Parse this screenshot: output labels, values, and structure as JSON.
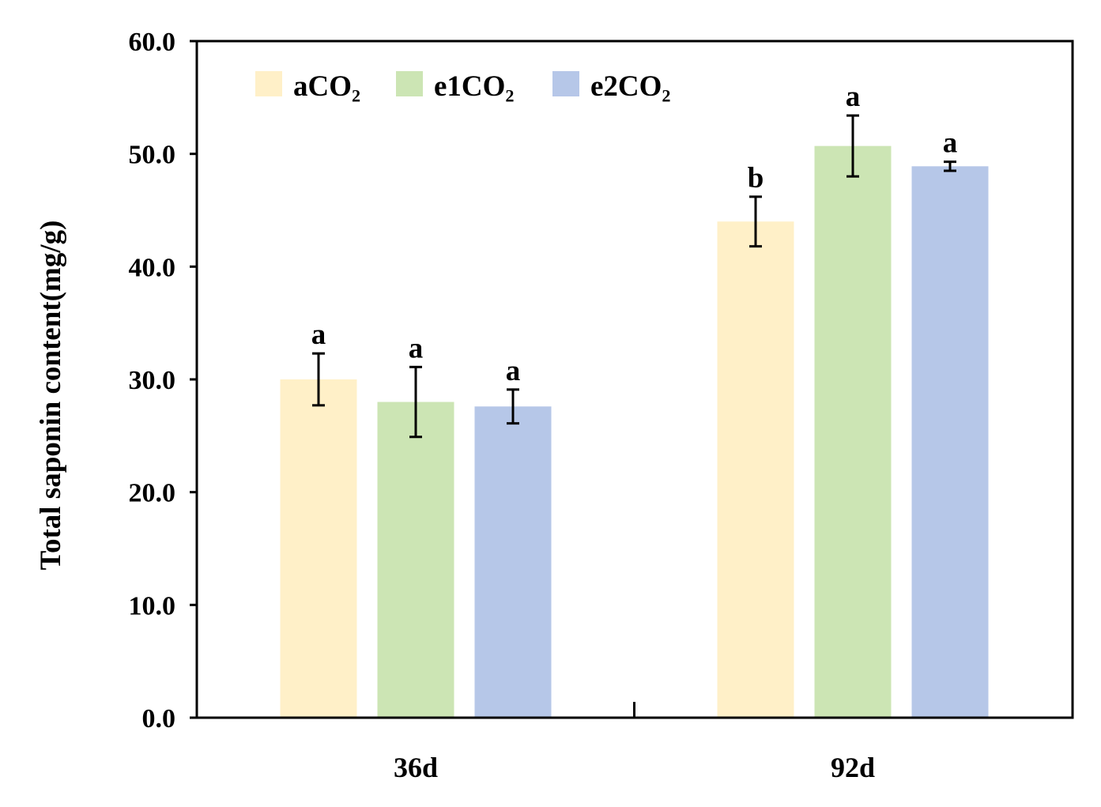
{
  "chart_data": {
    "type": "bar",
    "title": "",
    "xlabel": "",
    "ylabel": "Total saponin content(mg/g)",
    "ylim": [
      0,
      60
    ],
    "yticks": [
      0,
      10,
      20,
      30,
      40,
      50,
      60
    ],
    "ytick_labels": [
      "0.0",
      "10.0",
      "20.0",
      "30.0",
      "40.0",
      "50.0",
      "60.0"
    ],
    "categories": [
      "36d",
      "92d"
    ],
    "legend_position": "top-left",
    "series": [
      {
        "name": "aCO₂",
        "color": "#fff0c8",
        "values": [
          30.0,
          44.0
        ],
        "errors": [
          2.3,
          2.2
        ],
        "sig": [
          "a",
          "b"
        ]
      },
      {
        "name": "e1CO₂",
        "color": "#cce5b4",
        "values": [
          28.0,
          50.7
        ],
        "errors": [
          3.1,
          2.7
        ],
        "sig": [
          "a",
          "a"
        ]
      },
      {
        "name": "e2CO₂",
        "color": "#b6c7e8",
        "values": [
          27.6,
          48.9
        ],
        "errors": [
          1.5,
          0.4
        ],
        "sig": [
          "a",
          "a"
        ]
      }
    ]
  }
}
